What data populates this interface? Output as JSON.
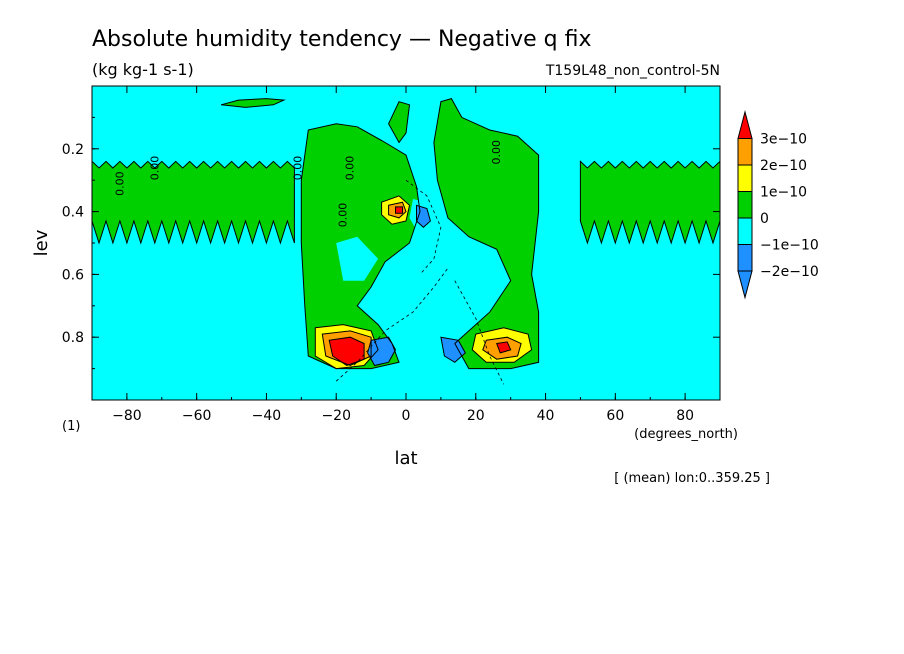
{
  "chart_data": {
    "type": "heatmap",
    "title": "Absolute humidity tendency — Negative q fix",
    "subtitle": "(kg kg-1 s-1)",
    "run_label": "T159L48_non_control-5N",
    "xlabel": "lat",
    "xunits": "(degrees_north)",
    "ylabel": "lev",
    "yunits": "(1)",
    "note": "[ (mean) lon:0..359.25 ]",
    "xlim": [
      -90,
      90
    ],
    "ylim": [
      1.0,
      0.0
    ],
    "x_ticks": [
      -80,
      -60,
      -40,
      -20,
      0,
      20,
      40,
      60,
      80
    ],
    "x_tick_labels": [
      "−80",
      "−60",
      "−40",
      "−20",
      "0",
      "20",
      "40",
      "60",
      "80"
    ],
    "y_ticks": [
      0.2,
      0.4,
      0.6,
      0.8
    ],
    "y_tick_labels": [
      "0.2",
      "0.4",
      "0.6",
      "0.8"
    ],
    "colorbar": {
      "levels": [
        -2e-10,
        -1e-10,
        0,
        1e-10,
        2e-10,
        3e-10
      ],
      "labels": [
        "−2e−10",
        "−1e−10",
        "0",
        "1e−10",
        "2e−10",
        "3e−10"
      ],
      "colors": [
        "#1e90ff",
        "#00ffff",
        "#00d000",
        "#ffff00",
        "#ffa000",
        "#ff0000"
      ],
      "bands": [
        {
          "from": null,
          "to": -2e-10,
          "color": "#1e90ff"
        },
        {
          "from": -2e-10,
          "to": -1e-10,
          "color": "#1e90ff"
        },
        {
          "from": -1e-10,
          "to": 0,
          "color": "#00ffff"
        },
        {
          "from": 0,
          "to": 1e-10,
          "color": "#00d000"
        },
        {
          "from": 1e-10,
          "to": 2e-10,
          "color": "#ffff00"
        },
        {
          "from": 2e-10,
          "to": 3e-10,
          "color": "#ffa000"
        },
        {
          "from": 3e-10,
          "to": null,
          "color": "#ff0000"
        }
      ]
    },
    "background_color": "#00ffff",
    "contour_labels": [
      "0.00"
    ],
    "regions": [
      {
        "name": "positive-band-south",
        "sign": "positive",
        "lat": [
          -90,
          -32
        ],
        "lev": [
          0.25,
          0.5
        ]
      },
      {
        "name": "positive-band-north",
        "sign": "positive",
        "lat": [
          50,
          90
        ],
        "lev": [
          0.25,
          0.5
        ]
      },
      {
        "name": "upper-positive-patch",
        "sign": "positive",
        "lat": [
          -53,
          -35
        ],
        "lev": [
          0.04,
          0.07
        ]
      },
      {
        "name": "tropical-column-south",
        "sign": "positive",
        "lat": [
          -28,
          5
        ],
        "lev": [
          0.1,
          0.9
        ]
      },
      {
        "name": "tropical-column-north",
        "sign": "positive",
        "lat": [
          8,
          40
        ],
        "lev": [
          0.1,
          0.9
        ]
      },
      {
        "name": "max-south-lower",
        "sign": "positive",
        "lat": [
          -20,
          -10
        ],
        "lev": [
          0.78,
          0.9
        ],
        "peak": 3e-10
      },
      {
        "name": "max-north-lower",
        "sign": "positive",
        "lat": [
          21,
          36
        ],
        "lev": [
          0.78,
          0.88
        ],
        "peak": 3e-10
      },
      {
        "name": "max-equator-mid",
        "sign": "positive",
        "lat": [
          -6,
          1
        ],
        "lev": [
          0.36,
          0.43
        ],
        "peak": 3e-10
      },
      {
        "name": "min-south-lower",
        "sign": "negative",
        "lat": [
          -10,
          -3
        ],
        "lev": [
          0.8,
          0.9
        ],
        "peak": -2e-10
      },
      {
        "name": "min-north-lower",
        "sign": "negative",
        "lat": [
          10,
          17
        ],
        "lev": [
          0.8,
          0.88
        ],
        "peak": -2e-10
      },
      {
        "name": "min-equator-mid",
        "sign": "negative",
        "lat": [
          2,
          8
        ],
        "lev": [
          0.36,
          0.46
        ],
        "peak": -1e-10
      }
    ]
  }
}
